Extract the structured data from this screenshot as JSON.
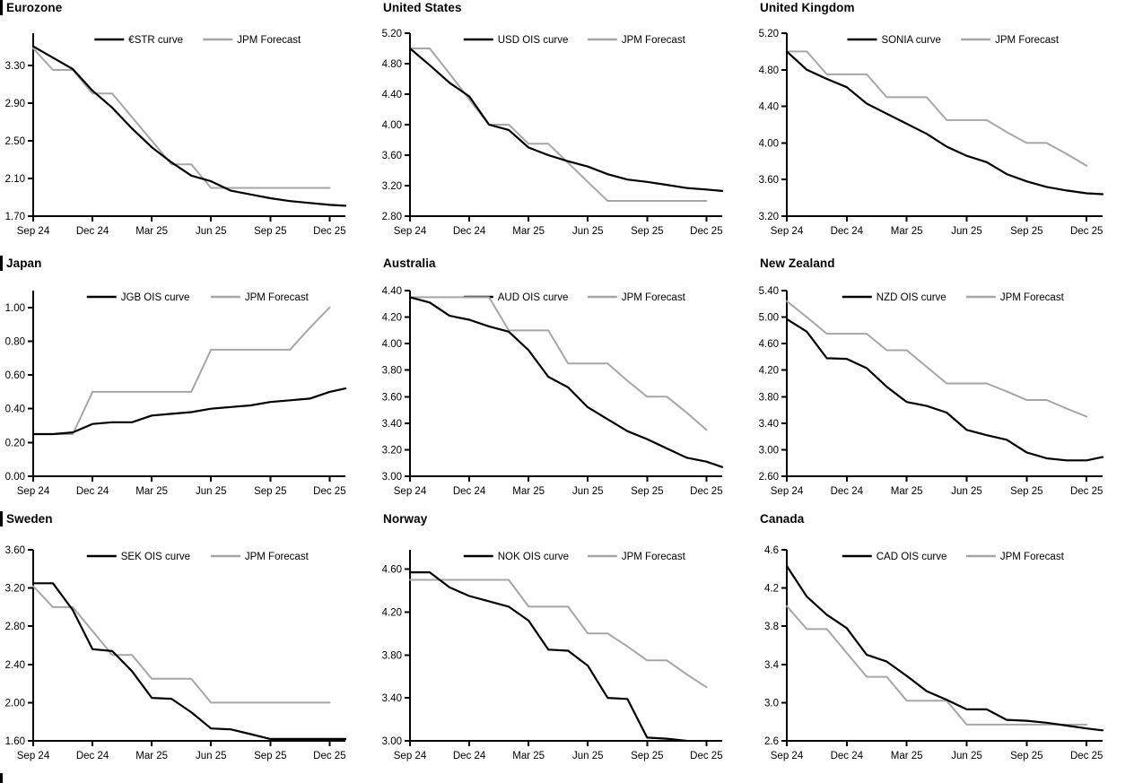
{
  "colors": {
    "curve": "#000000",
    "forecast": "#a6a6a6",
    "axis": "#000000"
  },
  "chart_data": [
    {
      "type": "line",
      "title": "Eurozone",
      "section_bar": true,
      "x_tick_labels": [
        "Sep 24",
        "Dec 24",
        "Mar 25",
        "Jun 25",
        "Sep 25",
        "Dec 25"
      ],
      "x_tick_months": [
        0,
        3,
        6,
        9,
        12,
        15
      ],
      "x_max": 15.8,
      "y_axis": {
        "min": 1.7,
        "max": 3.64,
        "ticks": [
          1.7,
          2.1,
          2.5,
          2.9,
          3.3
        ],
        "decimals": 2
      },
      "series": [
        {
          "name": "€STR curve",
          "role": "curve",
          "x": [
            0,
            1,
            2,
            3,
            4,
            5,
            6,
            7,
            8,
            9,
            10,
            11,
            12,
            13,
            14,
            15,
            15.8
          ],
          "y": [
            3.5,
            3.38,
            3.26,
            3.03,
            2.85,
            2.63,
            2.43,
            2.27,
            2.13,
            2.07,
            1.97,
            1.93,
            1.89,
            1.86,
            1.84,
            1.82,
            1.81
          ]
        },
        {
          "name": "JPM Forecast",
          "role": "forecast",
          "x": [
            0,
            1,
            2,
            3,
            4,
            5,
            6,
            7,
            8,
            9,
            10,
            11,
            12,
            13,
            14,
            15
          ],
          "y": [
            3.48,
            3.25,
            3.25,
            3.0,
            3.0,
            2.75,
            2.5,
            2.25,
            2.25,
            2.0,
            2.0,
            2.0,
            2.0,
            2.0,
            2.0,
            2.0
          ]
        }
      ]
    },
    {
      "type": "line",
      "title": "United States",
      "section_bar": false,
      "x_tick_labels": [
        "Sep 24",
        "Dec 24",
        "Mar 25",
        "Jun 25",
        "Sep 25",
        "Dec 25"
      ],
      "x_tick_months": [
        0,
        3,
        6,
        9,
        12,
        15
      ],
      "x_max": 15.8,
      "y_axis": {
        "min": 2.8,
        "max": 5.2,
        "ticks": [
          2.8,
          3.2,
          3.6,
          4.0,
          4.4,
          4.8,
          5.2
        ],
        "decimals": 2
      },
      "series": [
        {
          "name": "USD OIS curve",
          "role": "curve",
          "x": [
            0,
            1,
            2,
            3,
            4,
            5,
            6,
            7,
            8,
            9,
            10,
            11,
            12,
            13,
            14,
            15,
            15.8
          ],
          "y": [
            5.0,
            4.78,
            4.55,
            4.37,
            4.0,
            3.93,
            3.7,
            3.6,
            3.52,
            3.45,
            3.35,
            3.28,
            3.25,
            3.21,
            3.17,
            3.15,
            3.13
          ]
        },
        {
          "name": "JPM Forecast",
          "role": "forecast",
          "x": [
            0,
            1,
            2,
            3,
            4,
            5,
            6,
            7,
            8,
            9,
            10,
            11,
            12,
            13,
            14,
            15
          ],
          "y": [
            5.0,
            5.0,
            4.67,
            4.33,
            4.0,
            4.0,
            3.75,
            3.75,
            3.5,
            3.25,
            3.0,
            3.0,
            3.0,
            3.0,
            3.0,
            3.0
          ]
        }
      ]
    },
    {
      "type": "line",
      "title": "United Kingdom",
      "section_bar": false,
      "x_tick_labels": [
        "Sep 24",
        "Dec 24",
        "Mar 25",
        "Jun 25",
        "Sep 25",
        "Dec 25"
      ],
      "x_tick_months": [
        0,
        3,
        6,
        9,
        12,
        15
      ],
      "x_max": 15.8,
      "y_axis": {
        "min": 3.2,
        "max": 5.2,
        "ticks": [
          3.2,
          3.6,
          4.0,
          4.4,
          4.8,
          5.2
        ],
        "decimals": 2
      },
      "series": [
        {
          "name": "SONIA curve",
          "role": "curve",
          "x": [
            0,
            1,
            2,
            3,
            4,
            5,
            6,
            7,
            8,
            9,
            10,
            11,
            12,
            13,
            14,
            15,
            15.8
          ],
          "y": [
            5.0,
            4.8,
            4.7,
            4.61,
            4.43,
            4.32,
            4.21,
            4.1,
            3.96,
            3.86,
            3.79,
            3.66,
            3.58,
            3.52,
            3.48,
            3.45,
            3.44
          ]
        },
        {
          "name": "JPM Forecast",
          "role": "forecast",
          "x": [
            0,
            1,
            2,
            3,
            4,
            5,
            6,
            7,
            8,
            9,
            10,
            11,
            12,
            13,
            14,
            15
          ],
          "y": [
            5.0,
            5.0,
            4.75,
            4.75,
            4.75,
            4.5,
            4.5,
            4.5,
            4.25,
            4.25,
            4.25,
            4.12,
            4.0,
            4.0,
            3.88,
            3.75
          ]
        }
      ]
    },
    {
      "type": "line",
      "title": "Japan",
      "section_bar": true,
      "x_tick_labels": [
        "Sep 24",
        "Dec 24",
        "Mar 25",
        "Jun 25",
        "Sep 25",
        "Dec 25"
      ],
      "x_tick_months": [
        0,
        3,
        6,
        9,
        12,
        15
      ],
      "x_max": 15.8,
      "y_axis": {
        "min": 0.0,
        "max": 1.1,
        "ticks": [
          0.0,
          0.2,
          0.4,
          0.6,
          0.8,
          1.0
        ],
        "decimals": 2
      },
      "series": [
        {
          "name": "JGB OIS curve",
          "role": "curve",
          "x": [
            0,
            1,
            2,
            3,
            4,
            5,
            6,
            7,
            8,
            9,
            10,
            11,
            12,
            13,
            14,
            15,
            15.8
          ],
          "y": [
            0.25,
            0.25,
            0.26,
            0.31,
            0.32,
            0.32,
            0.36,
            0.37,
            0.38,
            0.4,
            0.41,
            0.42,
            0.44,
            0.45,
            0.46,
            0.5,
            0.52
          ]
        },
        {
          "name": "JPM Forecast",
          "role": "forecast",
          "x": [
            0,
            1,
            2,
            3,
            4,
            5,
            6,
            7,
            8,
            9,
            10,
            11,
            12,
            13,
            14,
            15
          ],
          "y": [
            0.25,
            0.25,
            0.25,
            0.5,
            0.5,
            0.5,
            0.5,
            0.5,
            0.5,
            0.75,
            0.75,
            0.75,
            0.75,
            0.75,
            0.88,
            1.0
          ]
        }
      ]
    },
    {
      "type": "line",
      "title": "Australia",
      "section_bar": false,
      "x_tick_labels": [
        "Sep 24",
        "Dec 24",
        "Mar 25",
        "Jun 25",
        "Sep 25",
        "Dec 25"
      ],
      "x_tick_months": [
        0,
        3,
        6,
        9,
        12,
        15
      ],
      "x_max": 15.8,
      "y_axis": {
        "min": 3.0,
        "max": 4.4,
        "ticks": [
          3.0,
          3.2,
          3.4,
          3.6,
          3.8,
          4.0,
          4.2,
          4.4
        ],
        "decimals": 2
      },
      "series": [
        {
          "name": "AUD OIS curve",
          "role": "curve",
          "x": [
            0,
            1,
            2,
            3,
            4,
            5,
            6,
            7,
            8,
            9,
            10,
            11,
            12,
            13,
            14,
            15,
            15.8
          ],
          "y": [
            4.35,
            4.31,
            4.21,
            4.18,
            4.13,
            4.09,
            3.95,
            3.75,
            3.67,
            3.52,
            3.43,
            3.34,
            3.28,
            3.21,
            3.14,
            3.11,
            3.07
          ]
        },
        {
          "name": "JPM Forecast",
          "role": "forecast",
          "x": [
            0,
            1,
            2,
            3,
            4,
            5,
            6,
            7,
            8,
            9,
            10,
            11,
            12,
            13,
            14,
            15
          ],
          "y": [
            4.35,
            4.35,
            4.35,
            4.35,
            4.35,
            4.1,
            4.1,
            4.1,
            3.85,
            3.85,
            3.85,
            3.72,
            3.6,
            3.6,
            3.48,
            3.35
          ]
        }
      ]
    },
    {
      "type": "line",
      "title": "New Zealand",
      "section_bar": false,
      "x_tick_labels": [
        "Sep 24",
        "Dec 24",
        "Mar 25",
        "Jun 25",
        "Sep 25",
        "Dec 25"
      ],
      "x_tick_months": [
        0,
        3,
        6,
        9,
        12,
        15
      ],
      "x_max": 15.8,
      "y_axis": {
        "min": 2.6,
        "max": 5.4,
        "ticks": [
          2.6,
          3.0,
          3.4,
          3.8,
          4.2,
          4.6,
          5.0,
          5.4
        ],
        "decimals": 2
      },
      "series": [
        {
          "name": "NZD OIS curve",
          "role": "curve",
          "x": [
            0,
            1,
            2,
            3,
            4,
            5,
            6,
            7,
            8,
            9,
            10,
            11,
            12,
            13,
            14,
            15,
            15.8
          ],
          "y": [
            4.97,
            4.78,
            4.38,
            4.37,
            4.23,
            3.95,
            3.72,
            3.66,
            3.56,
            3.3,
            3.22,
            3.15,
            2.96,
            2.87,
            2.84,
            2.84,
            2.89
          ]
        },
        {
          "name": "JPM Forecast",
          "role": "forecast",
          "x": [
            0,
            1,
            2,
            3,
            4,
            5,
            6,
            7,
            8,
            9,
            10,
            11,
            12,
            13,
            14,
            15
          ],
          "y": [
            5.24,
            5.0,
            4.75,
            4.75,
            4.75,
            4.5,
            4.5,
            4.25,
            4.0,
            4.0,
            4.0,
            3.88,
            3.75,
            3.75,
            3.62,
            3.5
          ]
        }
      ]
    },
    {
      "type": "line",
      "title": "Sweden",
      "section_bar": true,
      "x_tick_labels": [
        "Sep 24",
        "Dec 24",
        "Mar 25",
        "Jun 25",
        "Sep 25",
        "Dec 25"
      ],
      "x_tick_months": [
        0,
        3,
        6,
        9,
        12,
        15
      ],
      "x_max": 15.8,
      "y_axis": {
        "min": 1.6,
        "max": 3.6,
        "ticks": [
          1.6,
          2.0,
          2.4,
          2.8,
          3.2,
          3.6
        ],
        "decimals": 2
      },
      "series": [
        {
          "name": "SEK OIS curve",
          "role": "curve",
          "x": [
            0,
            1,
            2,
            3,
            4,
            5,
            6,
            7,
            8,
            9,
            10,
            11,
            12,
            13,
            14,
            15,
            15.8
          ],
          "y": [
            3.25,
            3.25,
            2.97,
            2.56,
            2.54,
            2.33,
            2.05,
            2.04,
            1.9,
            1.73,
            1.72,
            1.67,
            1.62,
            1.62,
            1.62,
            1.62,
            1.62
          ]
        },
        {
          "name": "JPM Forecast",
          "role": "forecast",
          "x": [
            0,
            1,
            2,
            3,
            4,
            5,
            6,
            7,
            8,
            9,
            10,
            11,
            12,
            13,
            14,
            15
          ],
          "y": [
            3.22,
            3.0,
            3.0,
            2.75,
            2.5,
            2.5,
            2.25,
            2.25,
            2.25,
            2.0,
            2.0,
            2.0,
            2.0,
            2.0,
            2.0,
            2.0
          ]
        }
      ]
    },
    {
      "type": "line",
      "title": "Norway",
      "section_bar": false,
      "x_tick_labels": [
        "Sep 24",
        "Dec 24",
        "Mar 25",
        "Jun 25",
        "Sep 25",
        "Dec 25"
      ],
      "x_tick_months": [
        0,
        3,
        6,
        9,
        12,
        15
      ],
      "x_max": 15.8,
      "y_axis": {
        "min": 3.0,
        "max": 4.78,
        "ticks": [
          3.0,
          3.4,
          3.8,
          4.2,
          4.6
        ],
        "decimals": 2
      },
      "series": [
        {
          "name": "NOK OIS curve",
          "role": "curve",
          "x": [
            0,
            1,
            2,
            3,
            4,
            5,
            6,
            7,
            8,
            9,
            10,
            11,
            12,
            13,
            14
          ],
          "y": [
            4.57,
            4.57,
            4.43,
            4.35,
            4.3,
            4.25,
            4.12,
            3.85,
            3.84,
            3.7,
            3.4,
            3.39,
            3.03,
            3.02,
            3.0
          ]
        },
        {
          "name": "JPM Forecast",
          "role": "forecast",
          "x": [
            0,
            1,
            2,
            3,
            4,
            5,
            6,
            7,
            8,
            9,
            10,
            11,
            12,
            13,
            14,
            15
          ],
          "y": [
            4.5,
            4.5,
            4.5,
            4.5,
            4.5,
            4.5,
            4.25,
            4.25,
            4.25,
            4.0,
            4.0,
            3.88,
            3.75,
            3.75,
            3.62,
            3.5
          ]
        }
      ]
    },
    {
      "type": "line",
      "title": "Canada",
      "section_bar": false,
      "x_tick_labels": [
        "Sep 24",
        "Dec 24",
        "Mar 25",
        "Jun 25",
        "Sep 25",
        "Dec 25"
      ],
      "x_tick_months": [
        0,
        3,
        6,
        9,
        12,
        15
      ],
      "x_max": 15.8,
      "y_axis": {
        "min": 2.6,
        "max": 4.6,
        "ticks": [
          2.6,
          3.0,
          3.4,
          3.8,
          4.2,
          4.6
        ],
        "decimals": 1
      },
      "series": [
        {
          "name": "CAD OIS curve",
          "role": "curve",
          "x": [
            0,
            1,
            2,
            3,
            4,
            5,
            6,
            7,
            8,
            9,
            10,
            11,
            12,
            13,
            14,
            15,
            15.8
          ],
          "y": [
            4.43,
            4.11,
            3.92,
            3.78,
            3.5,
            3.43,
            3.28,
            3.12,
            3.03,
            2.93,
            2.93,
            2.82,
            2.81,
            2.79,
            2.76,
            2.73,
            2.71
          ]
        },
        {
          "name": "JPM Forecast",
          "role": "forecast",
          "x": [
            0,
            1,
            2,
            3,
            4,
            5,
            6,
            7,
            8,
            9,
            10,
            11,
            12,
            13,
            14,
            15
          ],
          "y": [
            4.01,
            3.77,
            3.77,
            3.52,
            3.27,
            3.27,
            3.02,
            3.02,
            3.02,
            2.77,
            2.77,
            2.77,
            2.77,
            2.77,
            2.77,
            2.77
          ]
        }
      ]
    }
  ]
}
